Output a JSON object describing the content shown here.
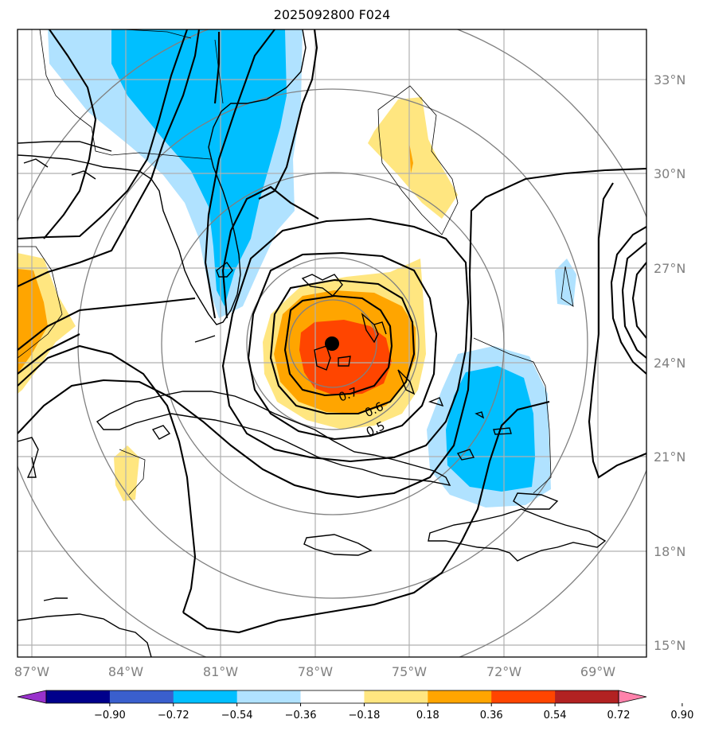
{
  "title": "2025092800 F024",
  "map": {
    "lat_labels": [
      "33°N",
      "30°N",
      "27°N",
      "24°N",
      "21°N",
      "18°N",
      "15°N"
    ],
    "lon_labels": [
      "87°W",
      "84°W",
      "81°W",
      "78°W",
      "75°W",
      "72°W",
      "69°W"
    ],
    "contour_labels": [
      "0.7",
      "0.6",
      "0.5"
    ],
    "center_marker": "storm-center"
  },
  "colorbar": {
    "ticks": [
      "−0.90",
      "−0.72",
      "−0.54",
      "−0.36",
      "−0.18",
      "0.18",
      "0.36",
      "0.54",
      "0.72",
      "0.90"
    ],
    "colors": [
      "#9932cc",
      "#00008b",
      "#3a5fcd",
      "#00bfff",
      "#b0e2ff",
      "#ffffff",
      "#ffe680",
      "#ffa500",
      "#ff4500",
      "#b22222",
      "#ff82ab"
    ]
  }
}
